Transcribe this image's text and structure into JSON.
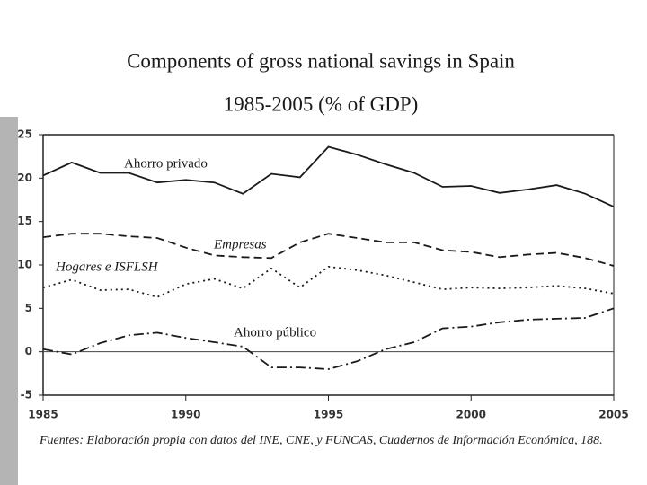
{
  "chart_data": {
    "type": "line",
    "title": "Components of gross national savings in Spain",
    "subtitle": "1985-2005 (% of GDP)",
    "x": [
      1985,
      1986,
      1987,
      1988,
      1989,
      1990,
      1991,
      1992,
      1993,
      1994,
      1995,
      1996,
      1997,
      1998,
      1999,
      2000,
      2001,
      2002,
      2003,
      2004,
      2005
    ],
    "series": [
      {
        "name": "Ahorro privado",
        "color": "#1a1a1a",
        "style": "solid",
        "values": [
          20.3,
          21.8,
          20.6,
          20.6,
          19.5,
          19.8,
          19.5,
          18.2,
          20.5,
          20.1,
          23.6,
          22.7,
          21.6,
          20.6,
          19.0,
          19.1,
          18.3,
          18.7,
          19.2,
          18.2,
          16.7
        ]
      },
      {
        "name": "Empresas",
        "color": "#1a1a1a",
        "style": "dashed",
        "values": [
          13.2,
          13.6,
          13.6,
          13.3,
          13.1,
          12.0,
          11.1,
          10.9,
          10.8,
          12.6,
          13.6,
          13.1,
          12.6,
          12.6,
          11.7,
          11.5,
          10.9,
          11.2,
          11.4,
          10.8,
          9.9
        ]
      },
      {
        "name": "Hogares e ISFLSH",
        "color": "#1a1a1a",
        "style": "dotted",
        "values": [
          7.4,
          8.3,
          7.1,
          7.2,
          6.3,
          7.8,
          8.4,
          7.3,
          9.6,
          7.4,
          9.8,
          9.4,
          8.8,
          8.0,
          7.2,
          7.4,
          7.3,
          7.4,
          7.6,
          7.3,
          6.7
        ]
      },
      {
        "name": "Ahorro público",
        "color": "#1a1a1a",
        "style": "dashdot",
        "values": [
          0.3,
          -0.3,
          1.0,
          1.9,
          2.2,
          1.6,
          1.1,
          0.6,
          -1.8,
          -1.8,
          -2.0,
          -1.1,
          0.3,
          1.1,
          2.7,
          2.9,
          3.4,
          3.7,
          3.8,
          3.9,
          5.0
        ]
      }
    ],
    "xlim": [
      1985,
      2005
    ],
    "xticks": [
      1985,
      1990,
      1995,
      2000,
      2005
    ],
    "ylim": [
      -5,
      25
    ],
    "yticks": [
      -5,
      0,
      5,
      10,
      15,
      20,
      25
    ],
    "zero_line": true,
    "source": "Fuentes: Elaboración propia con datos del INE, CNE, y FUNCAS, Cuadernos de Información Económica, 188."
  }
}
